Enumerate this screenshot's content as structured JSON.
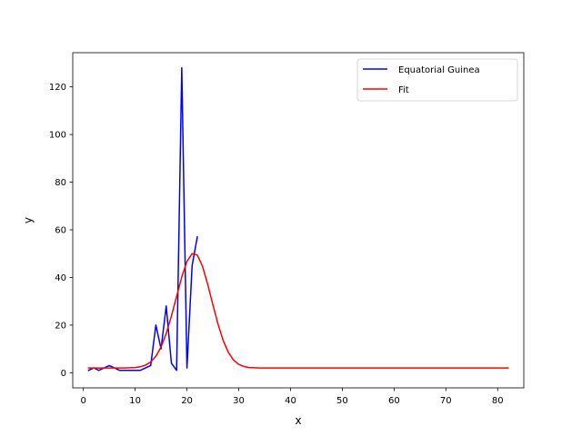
{
  "chart_data": {
    "type": "line",
    "title": "",
    "xlabel": "x",
    "ylabel": "y",
    "xlim": [
      -2.05,
      85.05
    ],
    "ylim": [
      -6.35,
      134.35
    ],
    "xticks": [
      0,
      10,
      20,
      30,
      40,
      50,
      60,
      70,
      80
    ],
    "yticks": [
      0,
      20,
      40,
      60,
      80,
      100,
      120
    ],
    "grid": false,
    "legend_position": "top-right",
    "series": [
      {
        "name": "Equatorial Guinea",
        "color": "#0000ff",
        "x": [
          1,
          2,
          3,
          4,
          5,
          6,
          7,
          8,
          9,
          10,
          11,
          12,
          13,
          14,
          15,
          16,
          17,
          18,
          19,
          20,
          21,
          22
        ],
        "y": [
          1,
          2,
          1,
          2,
          3,
          2,
          1,
          1,
          1,
          1,
          1,
          2,
          3,
          20,
          10,
          28,
          4,
          1,
          128,
          2,
          45,
          57
        ]
      },
      {
        "name": "Fit",
        "color": "#ff0000",
        "x": [
          1,
          2,
          3,
          4,
          5,
          6,
          7,
          8,
          9,
          10,
          11,
          12,
          13,
          14,
          15,
          16,
          17,
          18,
          19,
          20,
          21,
          22,
          23,
          24,
          25,
          26,
          27,
          28,
          29,
          30,
          31,
          32,
          33,
          34,
          35,
          36,
          37,
          38,
          39,
          40,
          41,
          42,
          43,
          44,
          45,
          46,
          47,
          48,
          49,
          50,
          51,
          52,
          53,
          54,
          55,
          56,
          57,
          58,
          59,
          60,
          61,
          62,
          63,
          64,
          65,
          66,
          67,
          68,
          69,
          70,
          71,
          72,
          73,
          74,
          75,
          76,
          77,
          78,
          79,
          80,
          81,
          82
        ],
        "y": [
          2.0,
          2.0,
          2.0,
          2.0,
          2.0,
          2.0,
          2.0,
          2.0,
          2.1,
          2.2,
          2.5,
          3.2,
          4.5,
          6.9,
          10.8,
          16.5,
          23.8,
          32.0,
          40.2,
          46.7,
          50.0,
          49.4,
          44.7,
          37.2,
          28.6,
          20.4,
          13.5,
          8.5,
          5.3,
          3.5,
          2.6,
          2.2,
          2.1,
          2.0,
          2.0,
          2.0,
          2.0,
          2.0,
          2.0,
          2.0,
          2.0,
          2.0,
          2.0,
          2.0,
          2.0,
          2.0,
          2.0,
          2.0,
          2.0,
          2.0,
          2.0,
          2.0,
          2.0,
          2.0,
          2.0,
          2.0,
          2.0,
          2.0,
          2.0,
          2.0,
          2.0,
          2.0,
          2.0,
          2.0,
          2.0,
          2.0,
          2.0,
          2.0,
          2.0,
          2.0,
          2.0,
          2.0,
          2.0,
          2.0,
          2.0,
          2.0,
          2.0,
          2.0,
          2.0,
          2.0,
          2.0,
          2.0
        ]
      }
    ]
  }
}
